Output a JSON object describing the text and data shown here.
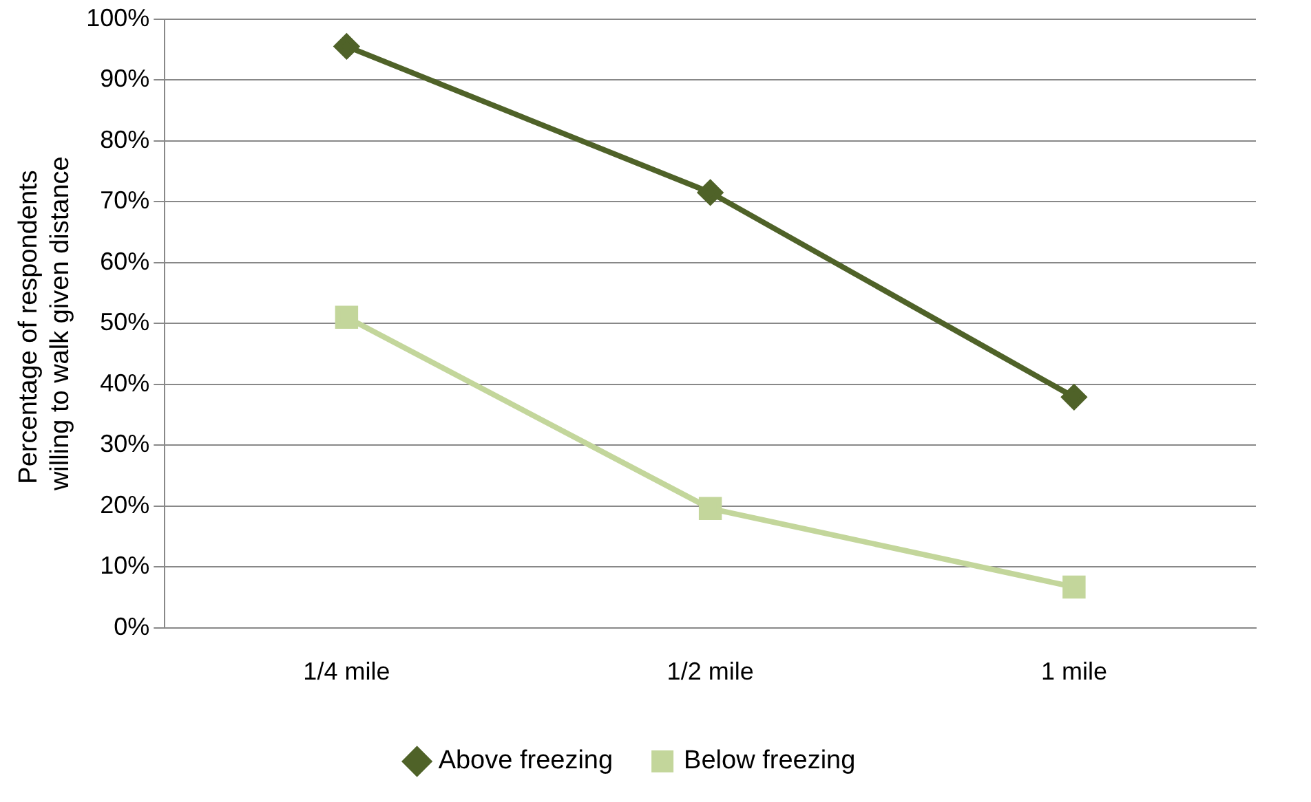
{
  "chart_data": {
    "type": "line",
    "ylabel": "Percentage of respondents  willing to walk given distance",
    "categories": [
      "1/4 mile",
      "1/2 mile",
      "1 mile"
    ],
    "series": [
      {
        "name": "Above freezing",
        "color": "#4f6228",
        "marker": "diamond",
        "values": [
          95.5,
          71.5,
          37.9
        ]
      },
      {
        "name": "Below freezing",
        "color": "#c3d69b",
        "marker": "square",
        "values": [
          51,
          19.6,
          6.7
        ]
      }
    ],
    "ylim": [
      0,
      100
    ],
    "yticks": [
      {
        "value": 0,
        "label": "0%"
      },
      {
        "value": 10,
        "label": "10%"
      },
      {
        "value": 20,
        "label": "20%"
      },
      {
        "value": 30,
        "label": "30%"
      },
      {
        "value": 40,
        "label": "40%"
      },
      {
        "value": 50,
        "label": "50%"
      },
      {
        "value": 60,
        "label": "60%"
      },
      {
        "value": 70,
        "label": "70%"
      },
      {
        "value": 80,
        "label": "80%"
      },
      {
        "value": 90,
        "label": "90%"
      },
      {
        "value": 100,
        "label": "100%"
      }
    ],
    "grid": "y",
    "legend": "bottom",
    "line_style": "solid"
  }
}
